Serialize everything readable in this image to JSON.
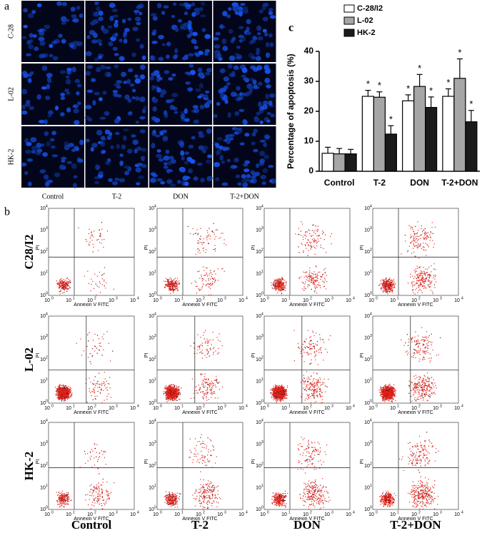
{
  "panel_labels": {
    "a": "a",
    "b": "b",
    "c": "c"
  },
  "microscopy": {
    "rows": [
      "C-28",
      "L-02",
      "HK-2"
    ],
    "columns": [
      "Control",
      "T-2",
      "DON",
      "T-2+DON"
    ]
  },
  "flow": {
    "rows": [
      "C28/I2",
      "L-02",
      "HK-2"
    ],
    "columns": [
      "Control",
      "T-2",
      "DON",
      "T-2+DON"
    ],
    "x_label": "Annexin V FITC",
    "y_label": "PI",
    "tick_base": "10",
    "tick_exponents": [
      0,
      1,
      2,
      3,
      4
    ]
  },
  "chart_data": {
    "type": "bar",
    "y_label": "Percentage of apoptosis (%)",
    "categories": [
      "Control",
      "T-2",
      "DON",
      "T-2+DON"
    ],
    "ylim": [
      0,
      40
    ],
    "yticks": [
      0,
      10,
      20,
      30,
      40
    ],
    "marker": "*",
    "significant": [
      false,
      true,
      true,
      true
    ],
    "series": [
      {
        "name": "C-28/I2",
        "color": "#ffffff",
        "values": [
          6,
          25,
          23.5,
          25
        ],
        "errors": [
          2,
          2,
          2,
          2.5
        ]
      },
      {
        "name": "L-02",
        "color": "#a6a6a6",
        "values": [
          5.8,
          24.7,
          28.3,
          31
        ],
        "errors": [
          1.8,
          1.8,
          4,
          6.5
        ]
      },
      {
        "name": "HK-2",
        "color": "#1a1a1a",
        "values": [
          5.8,
          12.4,
          21.3,
          16.5
        ],
        "errors": [
          1.5,
          2.8,
          3.5,
          3.8
        ]
      }
    ]
  }
}
